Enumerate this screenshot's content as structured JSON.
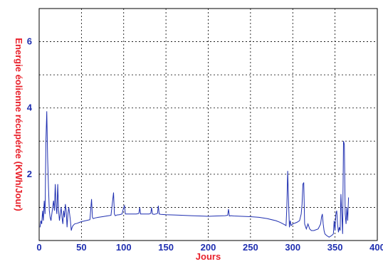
{
  "chart_data": {
    "type": "line",
    "title": "",
    "xlabel": "Jours",
    "ylabel": "Energie éolienne récupérée (KWh/Jour)",
    "xlim": [
      0,
      400
    ],
    "ylim": [
      0,
      7
    ],
    "xticks": [
      "0",
      "50",
      "100",
      "150",
      "200",
      "250",
      "300",
      "350",
      "400"
    ],
    "yticks": [
      "2",
      "4",
      "6"
    ],
    "grid": true,
    "colors": {
      "line": "#1f2fb0",
      "tick_text": "#1f2fb0",
      "axis_label": "#e8202a",
      "frame": "#000000",
      "grid": "#000000"
    },
    "series": [
      {
        "x": [
          1,
          2,
          3,
          4,
          5,
          6,
          7,
          8,
          9,
          10,
          11,
          12,
          13,
          14,
          15,
          16,
          17,
          18,
          19,
          20,
          21,
          22,
          23,
          24,
          25,
          26,
          27,
          28,
          29,
          30,
          31,
          32,
          33,
          34,
          35,
          36,
          37,
          38,
          39,
          40,
          42,
          45,
          48,
          50,
          55,
          60,
          62,
          63,
          64,
          66,
          70,
          75,
          80,
          85,
          88,
          89,
          90,
          92,
          95,
          98,
          100,
          101,
          102,
          103,
          105,
          108,
          110,
          115,
          118,
          119,
          120,
          125,
          130,
          132,
          133,
          134,
          136,
          138,
          140,
          141,
          142,
          144,
          150,
          160,
          170,
          180,
          190,
          200,
          210,
          220,
          223,
          224,
          225,
          227,
          230,
          240,
          250,
          260,
          270,
          280,
          285,
          290,
          292,
          293,
          294,
          295,
          296,
          297,
          298,
          300,
          305,
          308,
          310,
          311,
          312,
          313,
          314,
          316,
          318,
          320,
          322,
          325,
          330,
          333,
          334,
          335,
          336,
          337,
          338,
          340,
          343,
          346,
          348,
          349,
          350,
          351,
          352,
          353,
          354,
          355,
          356,
          357,
          358,
          359,
          360,
          361,
          362,
          363,
          364,
          365,
          366
        ],
        "y": [
          0.4,
          0.6,
          0.5,
          0.9,
          0.6,
          1.2,
          0.8,
          3.0,
          3.9,
          2.5,
          1.6,
          0.9,
          0.7,
          0.6,
          0.8,
          1.0,
          1.2,
          0.9,
          1.7,
          1.0,
          0.8,
          1.7,
          0.9,
          0.6,
          0.8,
          1.0,
          0.7,
          0.5,
          0.9,
          0.7,
          1.1,
          0.9,
          0.4,
          0.8,
          1.0,
          0.8,
          0.6,
          0.3,
          0.4,
          0.45,
          0.5,
          0.52,
          0.55,
          0.57,
          0.6,
          0.63,
          1.25,
          0.7,
          0.66,
          0.68,
          0.7,
          0.72,
          0.74,
          0.76,
          1.45,
          0.8,
          0.75,
          0.77,
          0.78,
          0.8,
          1.0,
          1.05,
          0.8,
          0.8,
          0.8,
          0.8,
          0.8,
          0.8,
          0.82,
          1.0,
          0.8,
          0.8,
          0.8,
          0.82,
          1.0,
          0.8,
          0.79,
          0.8,
          0.82,
          1.05,
          0.8,
          0.79,
          0.78,
          0.77,
          0.76,
          0.75,
          0.74,
          0.73,
          0.74,
          0.75,
          0.76,
          0.95,
          0.74,
          0.75,
          0.74,
          0.73,
          0.72,
          0.7,
          0.66,
          0.6,
          0.55,
          0.48,
          0.45,
          1.0,
          2.1,
          1.2,
          0.4,
          0.6,
          0.45,
          0.5,
          0.55,
          0.6,
          0.8,
          1.1,
          1.7,
          1.75,
          0.5,
          0.35,
          0.5,
          0.35,
          0.3,
          0.3,
          0.35,
          0.5,
          0.7,
          0.8,
          0.5,
          0.3,
          0.2,
          0.15,
          0.1,
          0.15,
          0.2,
          0.6,
          0.3,
          0.8,
          0.9,
          0.5,
          0.25,
          0.4,
          0.3,
          1.4,
          0.8,
          0.2,
          3.0,
          2.9,
          0.8,
          0.5,
          1.0,
          0.6,
          1.3
        ]
      }
    ]
  }
}
